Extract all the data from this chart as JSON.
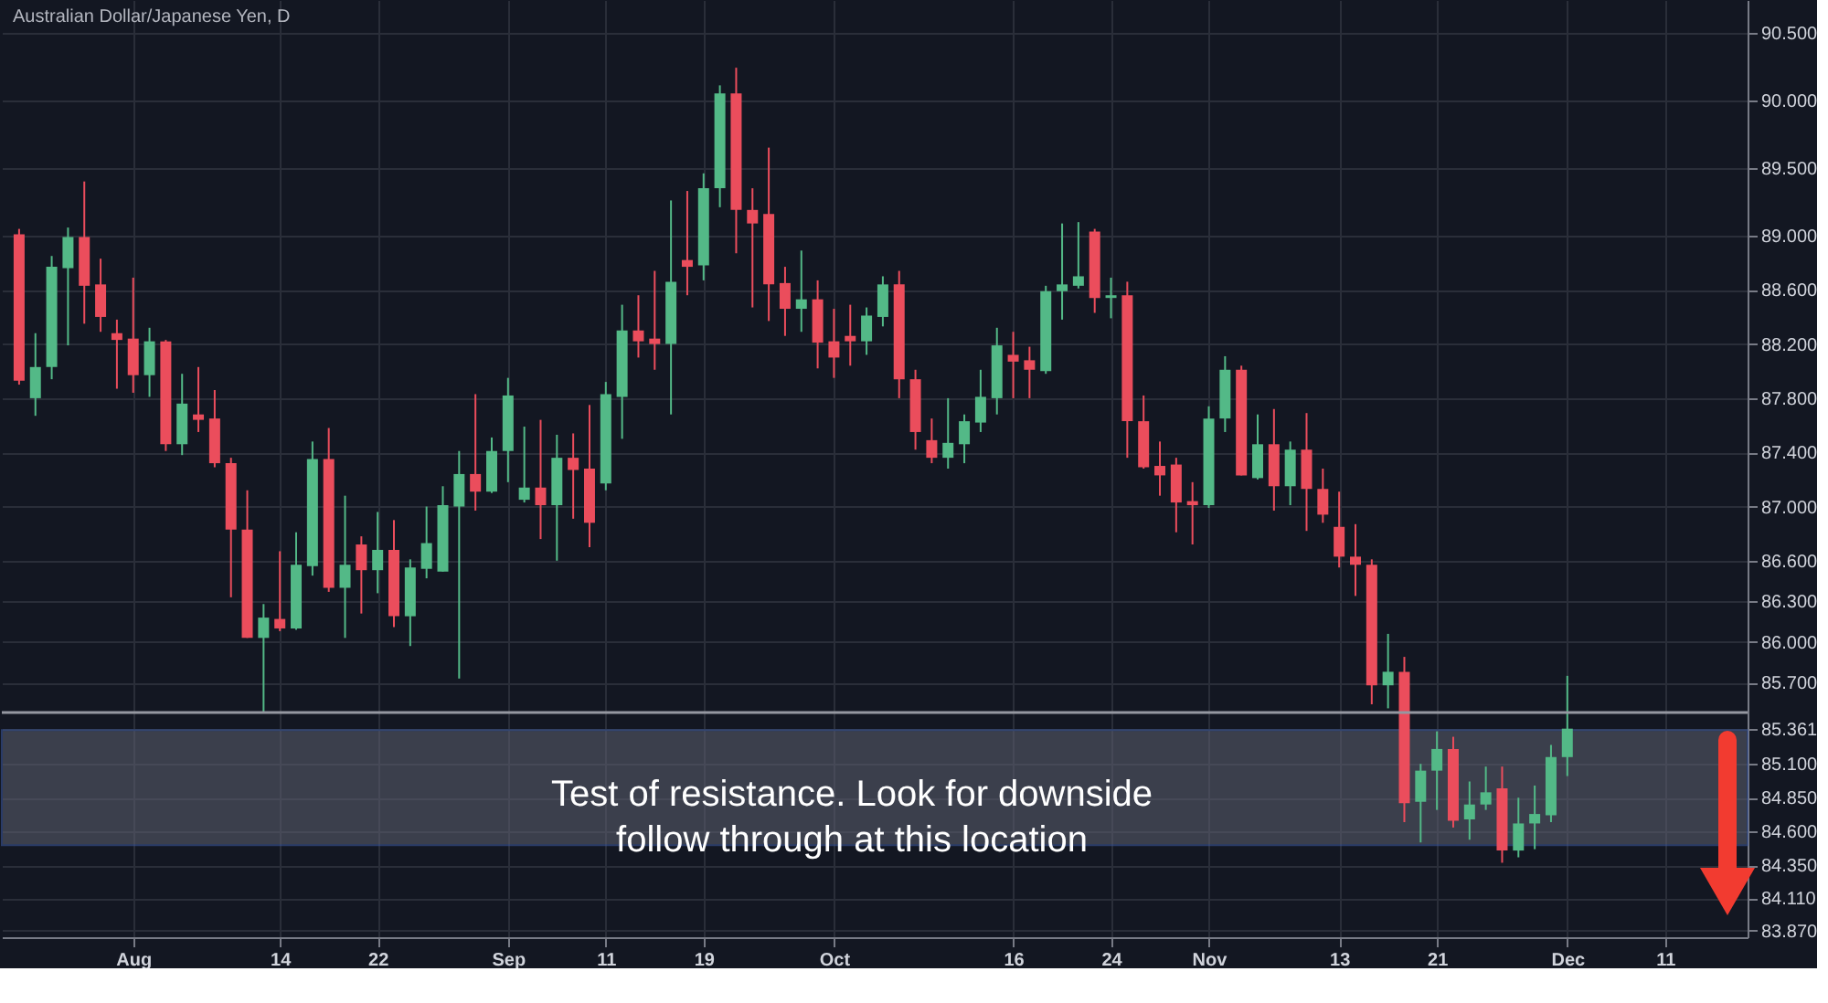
{
  "chart_data": {
    "type": "candlestick",
    "title": "Australian Dollar/Japanese Yen, D",
    "categories": [
      null,
      null,
      null,
      null,
      null,
      null,
      null,
      "Aug",
      null,
      null,
      null,
      null,
      null,
      null,
      null,
      null,
      "14",
      null,
      null,
      null,
      null,
      null,
      "22",
      null,
      null,
      null,
      null,
      null,
      null,
      null,
      "Sep",
      null,
      null,
      null,
      null,
      null,
      "11",
      null,
      null,
      null,
      null,
      null,
      "19",
      null,
      null,
      null,
      null,
      null,
      null,
      null,
      "Oct",
      null,
      null,
      null,
      null,
      null,
      null,
      null,
      null,
      null,
      null,
      "16",
      null,
      null,
      null,
      null,
      null,
      "24",
      null,
      null,
      null,
      null,
      null,
      "Nov",
      null,
      null,
      null,
      null,
      null,
      null,
      null,
      "13",
      null,
      null,
      null,
      null,
      null,
      "21",
      null,
      null,
      null,
      null,
      null,
      null,
      null,
      "Dec",
      null,
      null,
      null,
      null,
      null,
      "11",
      null,
      null,
      null,
      null
    ],
    "ohlc": [
      [
        89.01,
        89.05,
        87.9,
        87.93
      ],
      [
        87.8,
        88.28,
        87.67,
        88.03
      ],
      [
        88.03,
        88.85,
        87.94,
        88.77
      ],
      [
        88.76,
        89.06,
        88.19,
        88.99
      ],
      [
        88.99,
        89.4,
        88.35,
        88.63
      ],
      [
        88.64,
        88.83,
        88.29,
        88.4
      ],
      [
        88.28,
        88.38,
        87.87,
        88.23
      ],
      [
        88.24,
        88.69,
        87.84,
        87.97
      ],
      [
        87.97,
        88.32,
        87.81,
        88.22
      ],
      [
        88.22,
        88.23,
        87.41,
        87.46
      ],
      [
        87.46,
        87.98,
        87.38,
        87.76
      ],
      [
        87.68,
        88.03,
        87.55,
        87.64
      ],
      [
        87.65,
        87.86,
        87.29,
        87.32
      ],
      [
        87.32,
        87.36,
        86.33,
        86.83
      ],
      [
        86.83,
        87.12,
        86.03,
        86.03
      ],
      [
        86.03,
        86.28,
        85.48,
        86.18
      ],
      [
        86.17,
        86.67,
        86.08,
        86.1
      ],
      [
        86.1,
        86.81,
        86.09,
        86.57
      ],
      [
        86.56,
        87.48,
        86.49,
        87.35
      ],
      [
        87.35,
        87.58,
        86.37,
        86.4
      ],
      [
        86.4,
        87.08,
        86.03,
        86.57
      ],
      [
        86.72,
        86.78,
        86.21,
        86.53
      ],
      [
        86.53,
        86.96,
        86.36,
        86.68
      ],
      [
        86.68,
        86.9,
        86.11,
        86.19
      ],
      [
        86.19,
        86.61,
        85.97,
        86.55
      ],
      [
        86.54,
        87.0,
        86.47,
        86.73
      ],
      [
        86.52,
        87.15,
        86.52,
        87.01
      ],
      [
        87.0,
        87.41,
        85.73,
        87.24
      ],
      [
        87.24,
        87.83,
        86.97,
        87.11
      ],
      [
        87.11,
        87.51,
        87.1,
        87.41
      ],
      [
        87.41,
        87.95,
        87.18,
        87.82
      ],
      [
        87.05,
        87.59,
        87.03,
        87.14
      ],
      [
        87.14,
        87.64,
        86.76,
        87.01
      ],
      [
        87.01,
        87.53,
        86.6,
        87.36
      ],
      [
        87.36,
        87.54,
        86.91,
        87.27
      ],
      [
        87.28,
        87.75,
        86.7,
        86.88
      ],
      [
        87.17,
        87.92,
        87.12,
        87.83
      ],
      [
        87.81,
        88.49,
        87.5,
        88.3
      ],
      [
        88.3,
        88.56,
        88.1,
        88.22
      ],
      [
        88.24,
        88.74,
        88.01,
        88.2
      ],
      [
        88.2,
        89.26,
        87.68,
        88.66
      ],
      [
        88.82,
        89.33,
        88.56,
        88.77
      ],
      [
        88.78,
        89.46,
        88.67,
        89.35
      ],
      [
        89.35,
        90.11,
        89.21,
        90.05
      ],
      [
        90.05,
        90.24,
        88.87,
        89.19
      ],
      [
        89.19,
        89.35,
        88.47,
        89.09
      ],
      [
        89.16,
        89.65,
        88.37,
        88.64
      ],
      [
        88.65,
        88.77,
        88.26,
        88.46
      ],
      [
        88.46,
        88.89,
        88.29,
        88.53
      ],
      [
        88.53,
        88.67,
        88.02,
        88.21
      ],
      [
        88.22,
        88.46,
        87.95,
        88.1
      ],
      [
        88.26,
        88.49,
        88.04,
        88.22
      ],
      [
        88.22,
        88.47,
        88.12,
        88.41
      ],
      [
        88.4,
        88.7,
        88.33,
        88.64
      ],
      [
        88.64,
        88.74,
        87.8,
        87.94
      ],
      [
        87.94,
        88.01,
        87.42,
        87.55
      ],
      [
        87.49,
        87.65,
        87.32,
        87.36
      ],
      [
        87.36,
        87.8,
        87.28,
        87.47
      ],
      [
        87.46,
        87.68,
        87.32,
        87.63
      ],
      [
        87.62,
        88.01,
        87.55,
        87.81
      ],
      [
        87.8,
        88.32,
        87.68,
        88.19
      ],
      [
        88.12,
        88.29,
        87.8,
        88.07
      ],
      [
        88.08,
        88.18,
        87.8,
        88.01
      ],
      [
        88.0,
        88.63,
        87.98,
        88.59
      ],
      [
        88.59,
        89.09,
        88.38,
        88.64
      ],
      [
        88.63,
        89.1,
        88.61,
        88.7
      ],
      [
        89.03,
        89.05,
        88.43,
        88.54
      ],
      [
        88.54,
        88.69,
        88.39,
        88.56
      ],
      [
        88.56,
        88.66,
        87.36,
        87.63
      ],
      [
        87.63,
        87.82,
        87.28,
        87.29
      ],
      [
        87.3,
        87.48,
        87.08,
        87.23
      ],
      [
        87.31,
        87.36,
        86.81,
        87.03
      ],
      [
        87.04,
        87.18,
        86.72,
        87.01
      ],
      [
        87.01,
        87.74,
        86.99,
        87.65
      ],
      [
        87.65,
        88.11,
        87.55,
        88.01
      ],
      [
        88.01,
        88.04,
        87.23,
        87.23
      ],
      [
        87.21,
        87.68,
        87.2,
        87.46
      ],
      [
        87.46,
        87.72,
        86.97,
        87.15
      ],
      [
        87.15,
        87.48,
        87.01,
        87.42
      ],
      [
        87.42,
        87.69,
        86.82,
        87.13
      ],
      [
        87.13,
        87.28,
        86.88,
        86.94
      ],
      [
        86.85,
        87.11,
        86.55,
        86.63
      ],
      [
        86.63,
        86.87,
        86.34,
        86.57
      ],
      [
        86.57,
        86.61,
        85.54,
        85.68
      ],
      [
        85.68,
        86.06,
        85.51,
        85.78
      ],
      [
        85.78,
        85.89,
        84.67,
        84.81
      ],
      [
        84.82,
        85.1,
        84.52,
        85.05
      ],
      [
        85.05,
        85.34,
        84.76,
        85.21
      ],
      [
        85.21,
        85.3,
        84.63,
        84.68
      ],
      [
        84.69,
        84.97,
        84.54,
        84.8
      ],
      [
        84.8,
        85.08,
        84.76,
        84.89
      ],
      [
        84.92,
        85.08,
        84.37,
        84.46
      ],
      [
        84.46,
        84.85,
        84.41,
        84.66
      ],
      [
        84.66,
        84.94,
        84.47,
        84.73
      ],
      [
        84.72,
        85.24,
        84.67,
        85.15
      ],
      [
        85.15,
        85.75,
        85.01,
        85.36
      ],
      null,
      null,
      null,
      null,
      null,
      null,
      null,
      null,
      null,
      null
    ],
    "colors": [
      "#eb4d5c",
      "#53b987",
      "#53b987",
      "#53b987",
      "#eb4d5c",
      "#eb4d5c",
      "#eb4d5c",
      "#eb4d5c",
      "#53b987",
      "#eb4d5c",
      "#53b987",
      "#eb4d5c",
      "#eb4d5c",
      "#eb4d5c",
      "#eb4d5c",
      "#53b987",
      "#eb4d5c",
      "#53b987",
      "#53b987",
      "#eb4d5c",
      "#53b987",
      "#eb4d5c",
      "#53b987",
      "#eb4d5c",
      "#53b987",
      "#53b987",
      "#53b987",
      "#53b987",
      "#eb4d5c",
      "#53b987",
      "#53b987",
      "#53b987",
      "#eb4d5c",
      "#53b987",
      "#eb4d5c",
      "#eb4d5c",
      "#53b987",
      "#53b987",
      "#eb4d5c",
      "#eb4d5c",
      "#53b987",
      "#eb4d5c",
      "#53b987",
      "#53b987",
      "#eb4d5c",
      "#eb4d5c",
      "#eb4d5c",
      "#eb4d5c",
      "#53b987",
      "#eb4d5c",
      "#eb4d5c",
      "#eb4d5c",
      "#53b987",
      "#53b987",
      "#eb4d5c",
      "#eb4d5c",
      "#eb4d5c",
      "#53b987",
      "#53b987",
      "#53b987",
      "#53b987",
      "#eb4d5c",
      "#eb4d5c",
      "#53b987",
      "#53b987",
      "#53b987",
      "#eb4d5c",
      "#53b987",
      "#eb4d5c",
      "#eb4d5c",
      "#eb4d5c",
      "#eb4d5c",
      "#eb4d5c",
      "#53b987",
      "#53b987",
      "#eb4d5c",
      "#53b987",
      "#eb4d5c",
      "#53b987",
      "#eb4d5c",
      "#eb4d5c",
      "#eb4d5c",
      "#eb4d5c",
      "#eb4d5c",
      "#53b987",
      "#eb4d5c",
      "#53b987",
      "#53b987",
      "#eb4d5c",
      "#53b987",
      "#53b987",
      "#eb4d5c",
      "#53b987",
      "#53b987",
      "#53b987",
      "#53b987",
      null,
      null,
      null,
      null,
      null,
      null,
      null,
      null,
      null,
      null
    ],
    "ylim": [
      83.82,
      90.74
    ],
    "yticks": [
      {
        "value": 90.5,
        "label": "90.500"
      },
      {
        "value": 90.0,
        "label": "90.000"
      },
      {
        "value": 89.5,
        "label": "89.500"
      },
      {
        "value": 89.0,
        "label": "89.000"
      },
      {
        "value": 88.6,
        "label": "88.600"
      },
      {
        "value": 88.2,
        "label": "88.200"
      },
      {
        "value": 87.8,
        "label": "87.800"
      },
      {
        "value": 87.4,
        "label": "87.400"
      },
      {
        "value": 87.0,
        "label": "87.000"
      },
      {
        "value": 86.6,
        "label": "86.600"
      },
      {
        "value": 86.3,
        "label": "86.300"
      },
      {
        "value": 86.0,
        "label": "86.000"
      },
      {
        "value": 85.7,
        "label": "85.700"
      },
      {
        "value": 85.361,
        "label": "85.361"
      },
      {
        "value": 85.1,
        "label": "85.100"
      },
      {
        "value": 84.85,
        "label": "84.850"
      },
      {
        "value": 84.6,
        "label": "84.600"
      },
      {
        "value": 84.35,
        "label": "84.350"
      },
      {
        "value": 84.11,
        "label": "84.110"
      },
      {
        "value": 83.87,
        "label": "83.870"
      }
    ],
    "grid": true,
    "ref_lines": [
      {
        "axis": "y",
        "value": 85.48,
        "label": null,
        "color": "#9598a1"
      }
    ],
    "bands": [
      {
        "axis": "y",
        "from": 84.5,
        "to": 85.35,
        "label": null,
        "color": "#5d6070"
      }
    ],
    "annotations": [
      "Test of resistance.  Look for downside\nfollow through at this location"
    ]
  }
}
